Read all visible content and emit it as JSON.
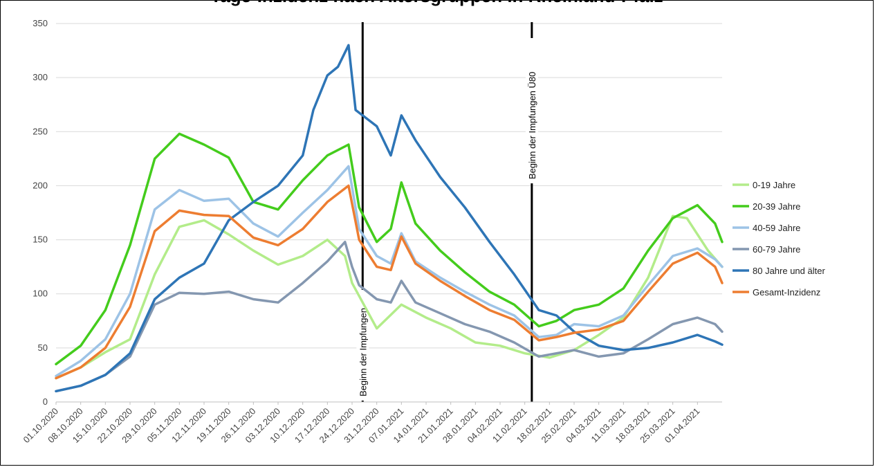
{
  "chart_data": {
    "type": "line",
    "title": "Tage-Inzidenz nach Altersgruppen in Rheinland-Pfalz",
    "ylim": [
      0,
      350
    ],
    "yticks": [
      0,
      50,
      100,
      150,
      200,
      250,
      300,
      350
    ],
    "grid": true,
    "legend_position": "right",
    "x_start": "01.10.2020",
    "x_end": "08.04.2021",
    "x_tick_labels": [
      "01.10.2020",
      "08.10.2020",
      "15.10.2020",
      "22.10.2020",
      "29.10.2020",
      "05.11.2020",
      "12.11.2020",
      "19.11.2020",
      "26.11.2020",
      "03.12.2020",
      "10.12.2020",
      "17.12.2020",
      "24.12.2020",
      "31.12.2020",
      "07.01.2021",
      "14.01.2021",
      "21.01.2021",
      "28.01.2021",
      "04.02.2021",
      "11.02.2021",
      "18.02.2021",
      "25.02.2021",
      "04.03.2021",
      "11.03.2021",
      "18.03.2021",
      "25.03.2021",
      "01.04.2021"
    ],
    "events": [
      {
        "date": "27.12.2020",
        "label": "Beginn der Impfungen"
      },
      {
        "date": "13.02.2021",
        "label": "Beginn der Impfungen Ü80"
      }
    ],
    "series": [
      {
        "name": "0-19 Jahre",
        "color": "#b3ec8a",
        "points": [
          [
            "01.10.2020",
            22
          ],
          [
            "08.10.2020",
            32
          ],
          [
            "15.10.2020",
            46
          ],
          [
            "22.10.2020",
            58
          ],
          [
            "29.10.2020",
            118
          ],
          [
            "05.11.2020",
            162
          ],
          [
            "12.11.2020",
            168
          ],
          [
            "19.11.2020",
            155
          ],
          [
            "26.11.2020",
            140
          ],
          [
            "03.12.2020",
            127
          ],
          [
            "10.12.2020",
            135
          ],
          [
            "17.12.2020",
            150
          ],
          [
            "22.12.2020",
            135
          ],
          [
            "24.12.2020",
            110
          ],
          [
            "31.12.2020",
            68
          ],
          [
            "07.01.2021",
            90
          ],
          [
            "14.01.2021",
            78
          ],
          [
            "21.01.2021",
            68
          ],
          [
            "28.01.2021",
            55
          ],
          [
            "04.02.2021",
            52
          ],
          [
            "11.02.2021",
            45
          ],
          [
            "18.02.2021",
            41
          ],
          [
            "25.02.2021",
            48
          ],
          [
            "04.03.2021",
            62
          ],
          [
            "11.03.2021",
            78
          ],
          [
            "18.03.2021",
            115
          ],
          [
            "25.03.2021",
            172
          ],
          [
            "29.03.2021",
            170
          ],
          [
            "04.04.2021",
            140
          ],
          [
            "08.04.2021",
            125
          ]
        ]
      },
      {
        "name": "20-39 Jahre",
        "color": "#44cc1c",
        "points": [
          [
            "01.10.2020",
            35
          ],
          [
            "08.10.2020",
            52
          ],
          [
            "15.10.2020",
            85
          ],
          [
            "22.10.2020",
            145
          ],
          [
            "29.10.2020",
            225
          ],
          [
            "05.11.2020",
            248
          ],
          [
            "12.11.2020",
            238
          ],
          [
            "19.11.2020",
            226
          ],
          [
            "26.11.2020",
            185
          ],
          [
            "03.12.2020",
            178
          ],
          [
            "10.12.2020",
            205
          ],
          [
            "17.12.2020",
            228
          ],
          [
            "23.12.2020",
            238
          ],
          [
            "26.12.2020",
            180
          ],
          [
            "31.12.2020",
            148
          ],
          [
            "04.01.2021",
            160
          ],
          [
            "07.01.2021",
            203
          ],
          [
            "11.01.2021",
            165
          ],
          [
            "18.01.2021",
            140
          ],
          [
            "25.01.2021",
            120
          ],
          [
            "01.02.2021",
            102
          ],
          [
            "08.02.2021",
            90
          ],
          [
            "15.02.2021",
            70
          ],
          [
            "20.02.2021",
            75
          ],
          [
            "25.02.2021",
            85
          ],
          [
            "04.03.2021",
            90
          ],
          [
            "11.03.2021",
            105
          ],
          [
            "18.03.2021",
            140
          ],
          [
            "25.03.2021",
            170
          ],
          [
            "01.04.2021",
            182
          ],
          [
            "06.04.2021",
            165
          ],
          [
            "08.04.2021",
            148
          ]
        ]
      },
      {
        "name": "40-59 Jahre",
        "color": "#9dc3e6",
        "points": [
          [
            "01.10.2020",
            24
          ],
          [
            "08.10.2020",
            38
          ],
          [
            "15.10.2020",
            58
          ],
          [
            "22.10.2020",
            100
          ],
          [
            "29.10.2020",
            178
          ],
          [
            "05.11.2020",
            196
          ],
          [
            "12.11.2020",
            186
          ],
          [
            "19.11.2020",
            188
          ],
          [
            "26.11.2020",
            165
          ],
          [
            "03.12.2020",
            153
          ],
          [
            "10.12.2020",
            175
          ],
          [
            "17.12.2020",
            196
          ],
          [
            "23.12.2020",
            218
          ],
          [
            "26.12.2020",
            160
          ],
          [
            "31.12.2020",
            135
          ],
          [
            "04.01.2021",
            128
          ],
          [
            "07.01.2021",
            156
          ],
          [
            "11.01.2021",
            130
          ],
          [
            "18.01.2021",
            115
          ],
          [
            "25.01.2021",
            102
          ],
          [
            "01.02.2021",
            90
          ],
          [
            "08.02.2021",
            80
          ],
          [
            "15.02.2021",
            60
          ],
          [
            "20.02.2021",
            62
          ],
          [
            "25.02.2021",
            72
          ],
          [
            "04.03.2021",
            70
          ],
          [
            "11.03.2021",
            80
          ],
          [
            "18.03.2021",
            108
          ],
          [
            "25.03.2021",
            135
          ],
          [
            "01.04.2021",
            142
          ],
          [
            "06.04.2021",
            132
          ],
          [
            "08.04.2021",
            125
          ]
        ]
      },
      {
        "name": "60-79 Jahre",
        "color": "#8497b0",
        "points": [
          [
            "01.10.2020",
            10
          ],
          [
            "08.10.2020",
            15
          ],
          [
            "15.10.2020",
            25
          ],
          [
            "22.10.2020",
            42
          ],
          [
            "29.10.2020",
            90
          ],
          [
            "05.11.2020",
            101
          ],
          [
            "12.11.2020",
            100
          ],
          [
            "19.11.2020",
            102
          ],
          [
            "26.11.2020",
            95
          ],
          [
            "03.12.2020",
            92
          ],
          [
            "10.12.2020",
            110
          ],
          [
            "17.12.2020",
            130
          ],
          [
            "22.12.2020",
            148
          ],
          [
            "24.12.2020",
            125
          ],
          [
            "26.12.2020",
            108
          ],
          [
            "31.12.2020",
            95
          ],
          [
            "04.01.2021",
            92
          ],
          [
            "07.01.2021",
            112
          ],
          [
            "11.01.2021",
            92
          ],
          [
            "18.01.2021",
            82
          ],
          [
            "25.01.2021",
            72
          ],
          [
            "01.02.2021",
            65
          ],
          [
            "08.02.2021",
            55
          ],
          [
            "15.02.2021",
            42
          ],
          [
            "25.02.2021",
            48
          ],
          [
            "04.03.2021",
            42
          ],
          [
            "11.03.2021",
            45
          ],
          [
            "18.03.2021",
            58
          ],
          [
            "25.03.2021",
            72
          ],
          [
            "01.04.2021",
            78
          ],
          [
            "06.04.2021",
            72
          ],
          [
            "08.04.2021",
            65
          ]
        ]
      },
      {
        "name": "80 Jahre und älter",
        "color": "#2e75b6",
        "points": [
          [
            "01.10.2020",
            10
          ],
          [
            "08.10.2020",
            15
          ],
          [
            "15.10.2020",
            25
          ],
          [
            "22.10.2020",
            45
          ],
          [
            "29.10.2020",
            95
          ],
          [
            "05.11.2020",
            115
          ],
          [
            "12.11.2020",
            128
          ],
          [
            "19.11.2020",
            168
          ],
          [
            "26.11.2020",
            185
          ],
          [
            "03.12.2020",
            200
          ],
          [
            "10.12.2020",
            228
          ],
          [
            "13.12.2020",
            270
          ],
          [
            "17.12.2020",
            302
          ],
          [
            "20.12.2020",
            310
          ],
          [
            "23.12.2020",
            330
          ],
          [
            "25.12.2020",
            270
          ],
          [
            "31.12.2020",
            255
          ],
          [
            "04.01.2021",
            228
          ],
          [
            "07.01.2021",
            265
          ],
          [
            "11.01.2021",
            242
          ],
          [
            "18.01.2021",
            208
          ],
          [
            "25.01.2021",
            180
          ],
          [
            "01.02.2021",
            148
          ],
          [
            "08.02.2021",
            118
          ],
          [
            "15.02.2021",
            85
          ],
          [
            "20.02.2021",
            80
          ],
          [
            "25.02.2021",
            65
          ],
          [
            "04.03.2021",
            52
          ],
          [
            "11.03.2021",
            48
          ],
          [
            "18.03.2021",
            50
          ],
          [
            "25.03.2021",
            55
          ],
          [
            "01.04.2021",
            62
          ],
          [
            "06.04.2021",
            56
          ],
          [
            "08.04.2021",
            53
          ]
        ]
      },
      {
        "name": "Gesamt-Inzidenz",
        "color": "#ed7d31",
        "points": [
          [
            "01.10.2020",
            22
          ],
          [
            "08.10.2020",
            32
          ],
          [
            "15.10.2020",
            50
          ],
          [
            "22.10.2020",
            88
          ],
          [
            "29.10.2020",
            158
          ],
          [
            "05.11.2020",
            177
          ],
          [
            "12.11.2020",
            173
          ],
          [
            "19.11.2020",
            172
          ],
          [
            "26.11.2020",
            152
          ],
          [
            "03.12.2020",
            145
          ],
          [
            "10.12.2020",
            160
          ],
          [
            "17.12.2020",
            185
          ],
          [
            "23.12.2020",
            200
          ],
          [
            "26.12.2020",
            150
          ],
          [
            "31.12.2020",
            125
          ],
          [
            "04.01.2021",
            122
          ],
          [
            "07.01.2021",
            153
          ],
          [
            "11.01.2021",
            128
          ],
          [
            "18.01.2021",
            112
          ],
          [
            "25.01.2021",
            98
          ],
          [
            "01.02.2021",
            85
          ],
          [
            "08.02.2021",
            76
          ],
          [
            "15.02.2021",
            57
          ],
          [
            "20.02.2021",
            60
          ],
          [
            "25.02.2021",
            64
          ],
          [
            "04.03.2021",
            67
          ],
          [
            "11.03.2021",
            75
          ],
          [
            "18.03.2021",
            102
          ],
          [
            "25.03.2021",
            128
          ],
          [
            "01.04.2021",
            138
          ],
          [
            "06.04.2021",
            125
          ],
          [
            "08.04.2021",
            110
          ]
        ]
      }
    ]
  }
}
